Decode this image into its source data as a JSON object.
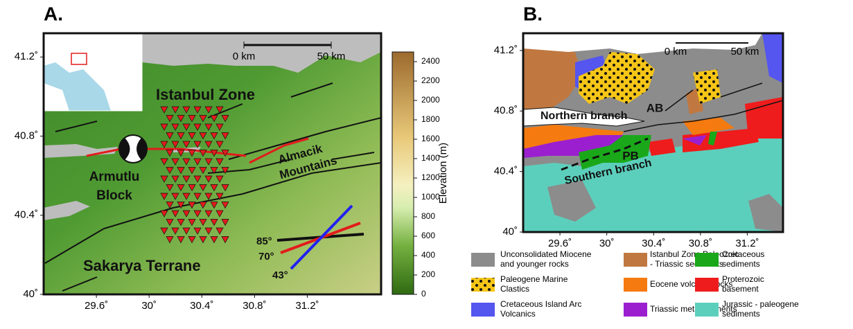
{
  "panel_a": {
    "label": "A.",
    "xlim": [
      29.2,
      31.76
    ],
    "ylim": [
      40,
      41.32
    ],
    "xticks": [
      {
        "value": 29.6,
        "label": "29.6˚"
      },
      {
        "value": 30,
        "label": "30˚"
      },
      {
        "value": 30.4,
        "label": "30.4˚"
      },
      {
        "value": 30.8,
        "label": "30.8˚"
      },
      {
        "value": 31.2,
        "label": "31.2˚"
      }
    ],
    "yticks": [
      {
        "value": 40,
        "label": "40˚"
      },
      {
        "value": 40.4,
        "label": "40.4˚"
      },
      {
        "value": 40.8,
        "label": "40.8˚"
      },
      {
        "value": 41.2,
        "label": "41.2˚"
      }
    ],
    "scale_bar": [
      "0 km",
      "50 km"
    ],
    "regions": [
      "Istanbul Zone",
      "Armutlu",
      "Block",
      "Almacik",
      "Mountains",
      "Sakarya Terrane"
    ],
    "dips": [
      "85°",
      "70°",
      "43°"
    ],
    "colorbar": {
      "title": "Elevation (m)",
      "lim": [
        0,
        2500
      ],
      "ticks": [
        0,
        200,
        400,
        600,
        800,
        1000,
        1200,
        1400,
        1600,
        1800,
        2000,
        2200,
        2400
      ]
    }
  },
  "panel_b": {
    "label": "B.",
    "xlim": [
      29.286,
      31.505
    ],
    "ylim": [
      40,
      41.314
    ],
    "xticks": [
      {
        "value": 29.6,
        "label": "29.6˚"
      },
      {
        "value": 30,
        "label": "30˚"
      },
      {
        "value": 30.4,
        "label": "30.4˚"
      },
      {
        "value": 30.8,
        "label": "30.8˚"
      },
      {
        "value": 31.2,
        "label": "31.2˚"
      }
    ],
    "yticks": [
      {
        "value": 40,
        "label": "40˚"
      },
      {
        "value": 40.4,
        "label": "40.4˚"
      },
      {
        "value": 40.8,
        "label": "40.8˚"
      },
      {
        "value": 41.2,
        "label": "41.2˚"
      }
    ],
    "scale_bar": [
      "0 km",
      "50 km"
    ],
    "labels": [
      "AB",
      "PB",
      "Northern branch",
      "Southern branch"
    ],
    "legend": [
      {
        "lines": [
          "Unconsolidated Miocene",
          "and younger rocks"
        ],
        "color": "#8c8c8c"
      },
      {
        "lines": [
          "Istanbul Zone Paleozoic",
          "- Triassic sediments"
        ],
        "color": "#c07840"
      },
      {
        "lines": [
          "Cretaceous",
          "sediments"
        ],
        "color": "#1aa81a"
      },
      {
        "lines": [
          "Paleogene Marine",
          "Clastics"
        ],
        "color": "#f5c518"
      },
      {
        "lines": [
          "Eocene volcanic rocks"
        ],
        "color": "#f57a10"
      },
      {
        "lines": [
          "Proterozoic",
          "basement"
        ],
        "color": "#ee1c1c"
      },
      {
        "lines": [
          "Cretaceous Island Arc",
          "Volcanics"
        ],
        "color": "#5555f0"
      },
      {
        "lines": [
          "Triassic metasediments"
        ],
        "color": "#9b1fcf"
      },
      {
        "lines": [
          "Jurassic - paleogene",
          "sediments"
        ],
        "color": "#5ccfbc"
      }
    ]
  }
}
